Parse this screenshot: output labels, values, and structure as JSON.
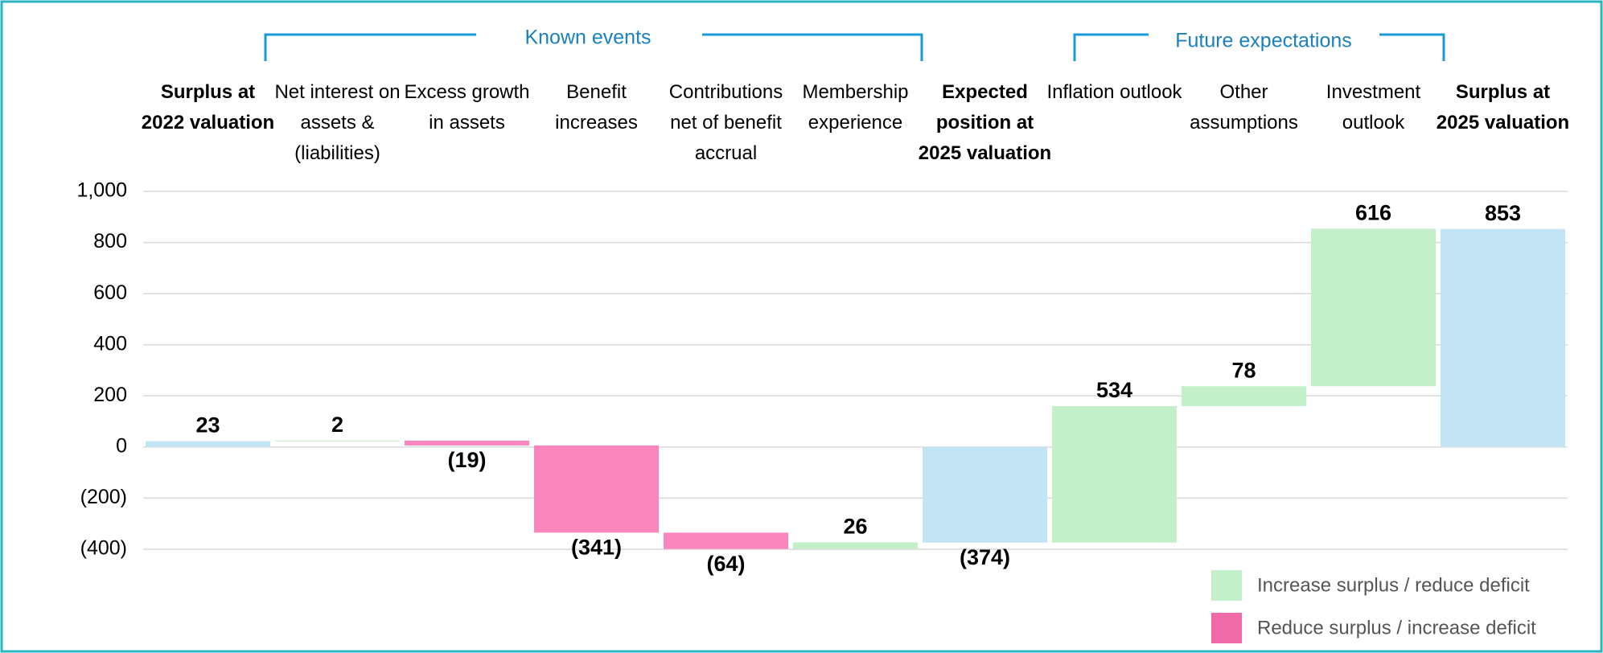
{
  "chart_data": {
    "type": "waterfall",
    "categories": [
      "Surplus at 2022 valuation",
      "Net interest on assets & (liabilities)",
      "Excess growth in assets",
      "Benefit increases",
      "Contributions net of benefit accrual",
      "Membership experience",
      "Expected position at 2025 valuation",
      "Inflation outlook",
      "Other assumptions",
      "Investment outlook",
      "Surplus at 2025 valuation"
    ],
    "values": [
      23,
      2,
      -19,
      -341,
      -64,
      26,
      -374,
      534,
      78,
      616,
      853
    ],
    "value_labels": [
      "23",
      "2",
      "(19)",
      "(341)",
      "(64)",
      "26",
      "(374)",
      "534",
      "78",
      "616",
      "853"
    ],
    "colors": [
      "#c2e4f5",
      "#c3f0c8",
      "#f987bd",
      "#f987bd",
      "#f987bd",
      "#c3f0c8",
      "#c2e4f5",
      "#c3f0c8",
      "#c3f0c8",
      "#c3f0c8",
      "#c2e4f5"
    ],
    "total_color": "#c2e4f5",
    "groups": [
      "Known events",
      "Future expectations"
    ],
    "legend": [
      {
        "name": "Increase surplus / reduce deficit",
        "color": "#c3f0c8"
      },
      {
        "name": "Reduce surplus / increase deficit",
        "color": "#f06ba8"
      }
    ],
    "ylim": [
      -400,
      1000
    ],
    "yticks": [
      {
        "value": -400,
        "label": "(400)"
      },
      {
        "value": -200,
        "label": "(200)"
      },
      0,
      200,
      400,
      600,
      800,
      {
        "value": 1000,
        "label": "1,000"
      }
    ],
    "grid": true
  }
}
